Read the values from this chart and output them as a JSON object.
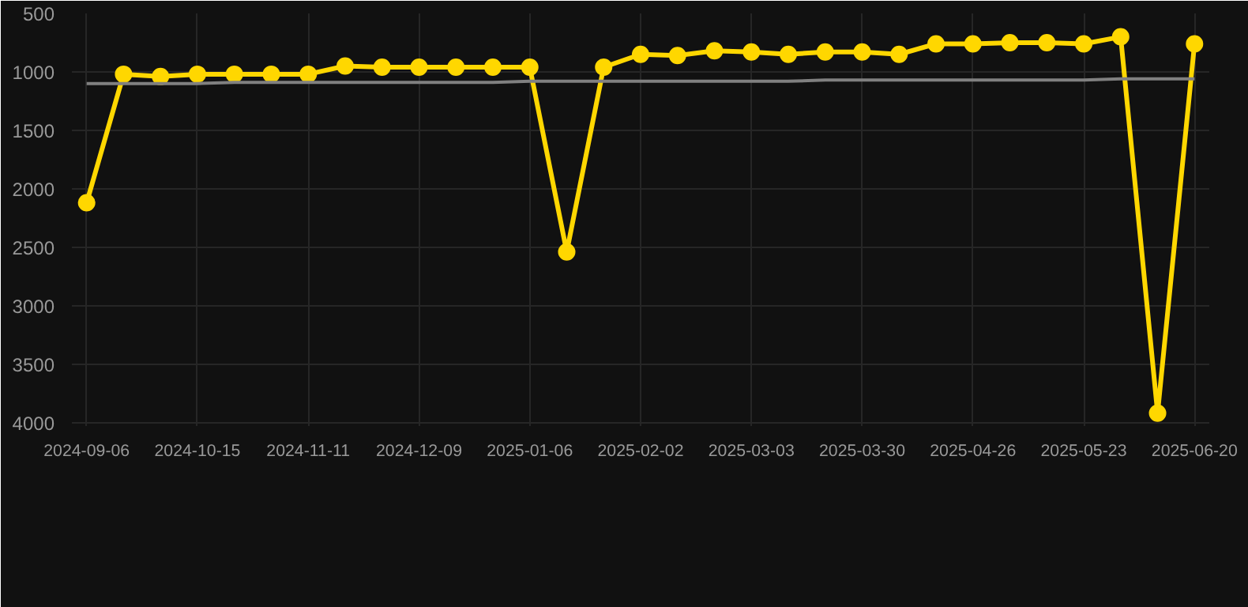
{
  "chart_data": {
    "type": "line",
    "categories": [
      "2024-09-06",
      null,
      null,
      "2024-10-15",
      null,
      null,
      "2024-11-11",
      null,
      null,
      "2024-12-09",
      null,
      null,
      "2025-01-06",
      null,
      null,
      "2025-02-02",
      null,
      null,
      "2025-03-03",
      null,
      null,
      "2025-03-30",
      null,
      null,
      "2025-04-26",
      null,
      null,
      "2025-05-23",
      null,
      null,
      "2025-06-20"
    ],
    "series": [
      {
        "color": "#ffd700",
        "marker": "circle",
        "values": [
          2120,
          1020,
          1040,
          1020,
          1020,
          1020,
          1020,
          950,
          960,
          960,
          960,
          960,
          960,
          2540,
          960,
          850,
          860,
          820,
          830,
          850,
          830,
          830,
          850,
          760,
          760,
          750,
          750,
          760,
          700,
          3920,
          760
        ]
      },
      {
        "color": "#808080",
        "marker": "none",
        "values": [
          1100,
          1100,
          1100,
          1100,
          1090,
          1090,
          1090,
          1090,
          1090,
          1090,
          1090,
          1090,
          1080,
          1080,
          1080,
          1080,
          1080,
          1080,
          1080,
          1080,
          1070,
          1070,
          1070,
          1070,
          1070,
          1070,
          1070,
          1070,
          1060,
          1060,
          1060
        ]
      }
    ],
    "ylim": [
      4030,
      500
    ],
    "yticks": [
      500,
      1000,
      1500,
      2000,
      2500,
      3000,
      3500,
      4000
    ],
    "grid": true
  }
}
